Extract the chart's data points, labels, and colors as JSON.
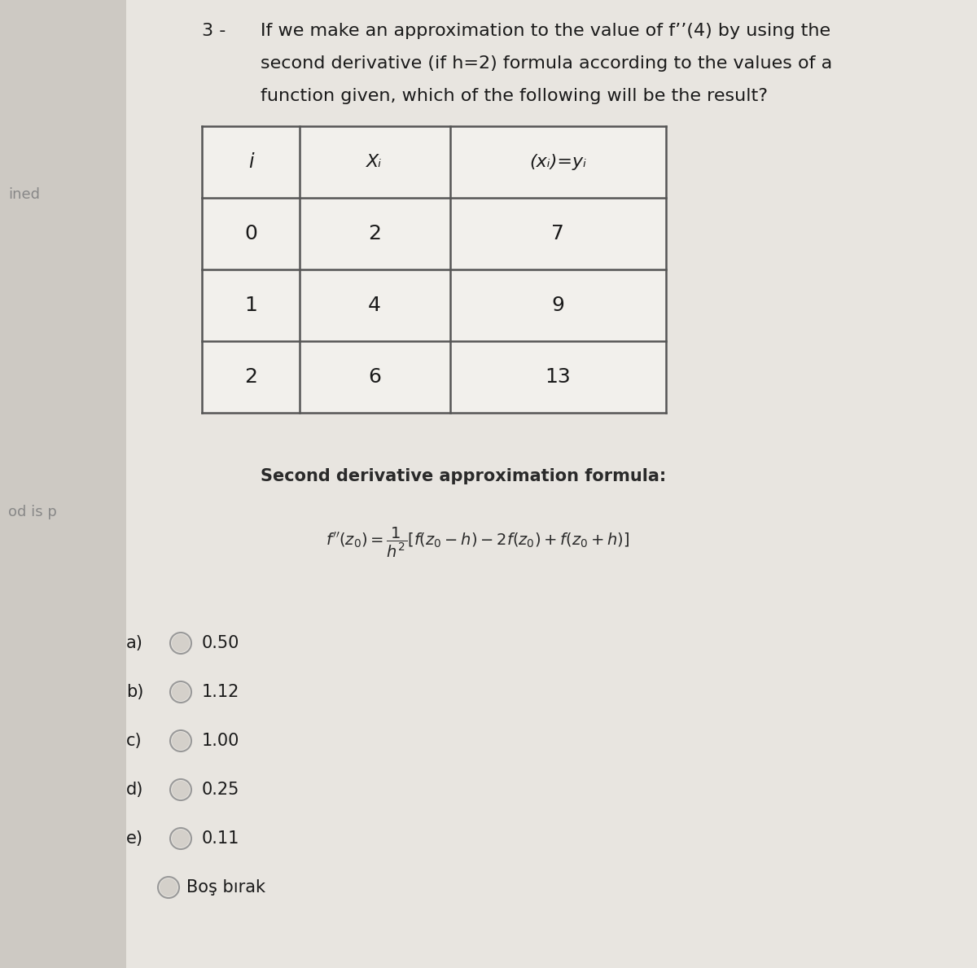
{
  "bg_color": "#d8d5d0",
  "content_bg": "#e8e6e2",
  "white_bg": "#f0eeeb",
  "question_number": "3 -",
  "question_text_line1": "If we make an approximation to the value of f’’(4) by using the",
  "question_text_line2": "second derivative (if h=2) formula according to the values of a",
  "question_text_line3": "function given, which of the following will be the result?",
  "left_label1": "ined",
  "left_label2": "od is p",
  "table_headers": [
    "i",
    "Xᵢ",
    "(xᵢ)=yᵢ"
  ],
  "table_rows": [
    [
      "0",
      "2",
      "7"
    ],
    [
      "1",
      "4",
      "9"
    ],
    [
      "2",
      "6",
      "13"
    ]
  ],
  "formula_label": "Second derivative approximation formula:",
  "options": [
    [
      "a)",
      "0.50"
    ],
    [
      "b)",
      "1.12"
    ],
    [
      "c)",
      "1.00"
    ],
    [
      "d)",
      "0.25"
    ],
    [
      "e)",
      "0.11"
    ]
  ],
  "bos_birak": "Boş bırak",
  "text_color": "#1a1a1a",
  "table_border": "#555555",
  "circle_edge": "#999999",
  "left_text_color": "#888888",
  "formula_text_color": "#2a2a2a"
}
